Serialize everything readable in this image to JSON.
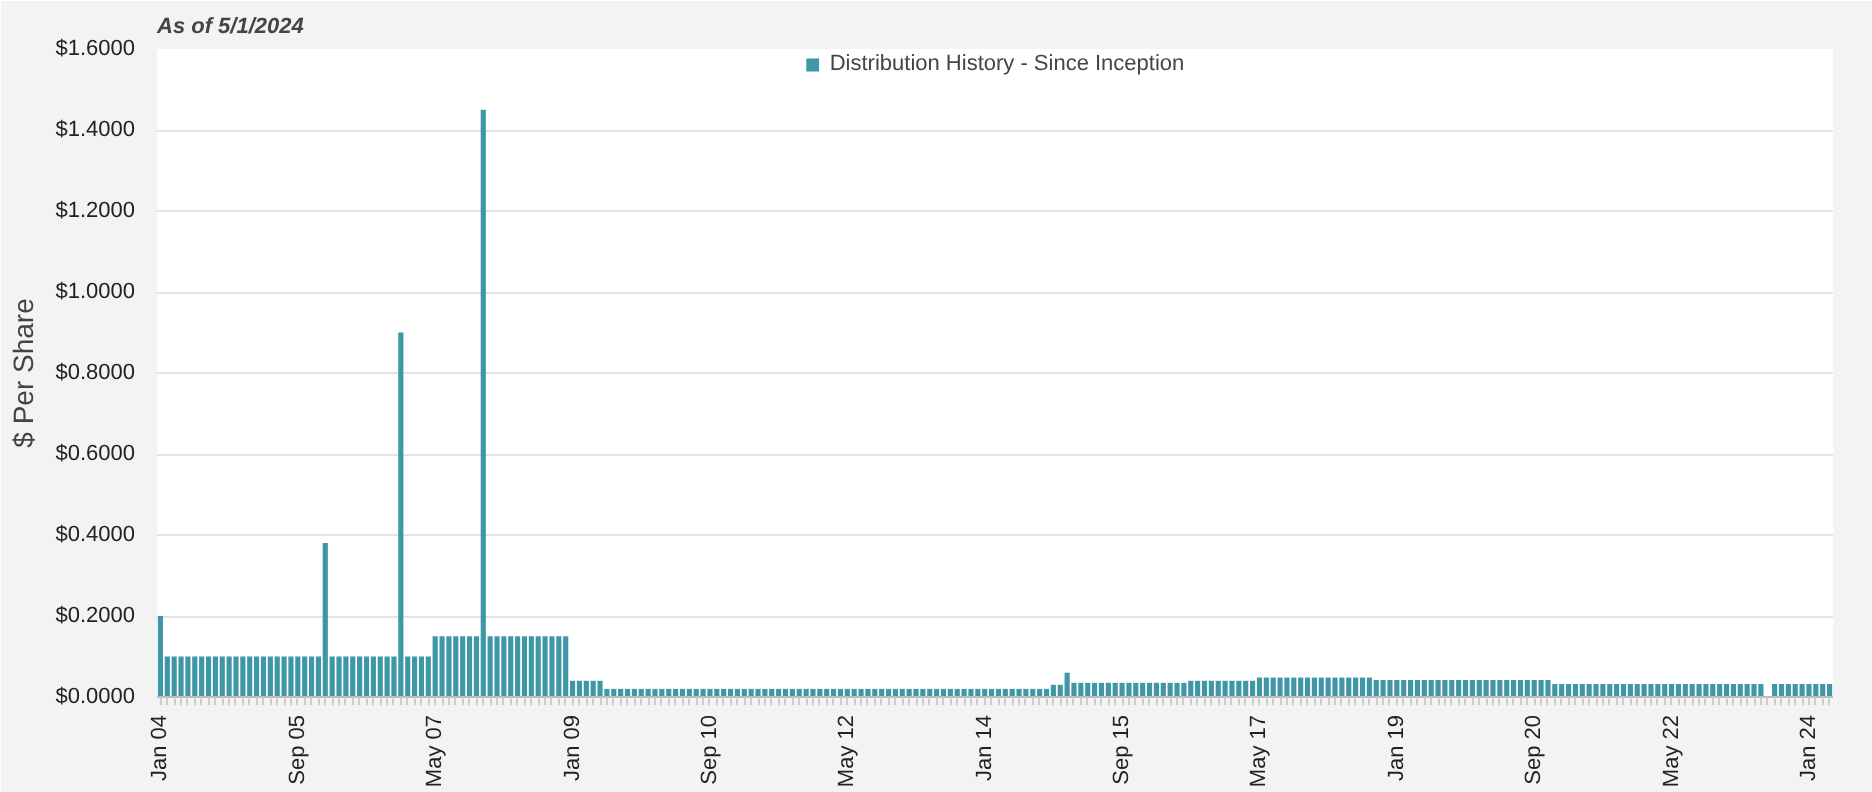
{
  "chart_data": {
    "type": "bar",
    "annotations": [
      "As of 5/1/2024"
    ],
    "ylabel": "$ Per Share",
    "categories": [
      "Jan 04",
      null,
      null,
      null,
      null,
      null,
      null,
      null,
      null,
      null,
      null,
      null,
      null,
      null,
      null,
      null,
      null,
      null,
      null,
      null,
      "Sep 05",
      null,
      null,
      null,
      null,
      null,
      null,
      null,
      null,
      null,
      null,
      null,
      null,
      null,
      null,
      null,
      null,
      null,
      null,
      null,
      "May 07",
      null,
      null,
      null,
      null,
      null,
      null,
      null,
      null,
      null,
      null,
      null,
      null,
      null,
      null,
      null,
      null,
      null,
      null,
      null,
      "Jan 09",
      null,
      null,
      null,
      null,
      null,
      null,
      null,
      null,
      null,
      null,
      null,
      null,
      null,
      null,
      null,
      null,
      null,
      null,
      null,
      "Sep 10",
      null,
      null,
      null,
      null,
      null,
      null,
      null,
      null,
      null,
      null,
      null,
      null,
      null,
      null,
      null,
      null,
      null,
      null,
      null,
      "May 12",
      null,
      null,
      null,
      null,
      null,
      null,
      null,
      null,
      null,
      null,
      null,
      null,
      null,
      null,
      null,
      null,
      null,
      null,
      null,
      "Jan 14",
      null,
      null,
      null,
      null,
      null,
      null,
      null,
      null,
      null,
      null,
      null,
      null,
      null,
      null,
      null,
      null,
      null,
      null,
      null,
      "Sep 15",
      null,
      null,
      null,
      null,
      null,
      null,
      null,
      null,
      null,
      null,
      null,
      null,
      null,
      null,
      null,
      null,
      null,
      null,
      null,
      "May 17",
      null,
      null,
      null,
      null,
      null,
      null,
      null,
      null,
      null,
      null,
      null,
      null,
      null,
      null,
      null,
      null,
      null,
      null,
      null,
      "Jan 19",
      null,
      null,
      null,
      null,
      null,
      null,
      null,
      null,
      null,
      null,
      null,
      null,
      null,
      null,
      null,
      null,
      null,
      null,
      null,
      "Sep 20",
      null,
      null,
      null,
      null,
      null,
      null,
      null,
      null,
      null,
      null,
      null,
      null,
      null,
      null,
      null,
      null,
      null,
      null,
      null,
      "May 22",
      null,
      null,
      null,
      null,
      null,
      null,
      null,
      null,
      null,
      null,
      null,
      null,
      null,
      null,
      null,
      null,
      null,
      null,
      null,
      "Jan 24",
      null,
      null,
      null
    ],
    "series": [
      {
        "name": "Distribution History - Since Inception",
        "color": "#3d97a5",
        "values": [
          0.2,
          0.1,
          0.1,
          0.1,
          0.1,
          0.1,
          0.1,
          0.1,
          0.1,
          0.1,
          0.1,
          0.1,
          0.1,
          0.1,
          0.1,
          0.1,
          0.1,
          0.1,
          0.1,
          0.1,
          0.1,
          0.1,
          0.1,
          0.1,
          0.38,
          0.1,
          0.1,
          0.1,
          0.1,
          0.1,
          0.1,
          0.1,
          0.1,
          0.1,
          0.1,
          0.9,
          0.1,
          0.1,
          0.1,
          0.1,
          0.15,
          0.15,
          0.15,
          0.15,
          0.15,
          0.15,
          0.15,
          1.45,
          0.15,
          0.15,
          0.15,
          0.15,
          0.15,
          0.15,
          0.15,
          0.15,
          0.15,
          0.15,
          0.15,
          0.15,
          0.04,
          0.04,
          0.04,
          0.04,
          0.04,
          0.02,
          0.02,
          0.02,
          0.02,
          0.02,
          0.02,
          0.02,
          0.02,
          0.02,
          0.02,
          0.02,
          0.02,
          0.02,
          0.02,
          0.02,
          0.02,
          0.02,
          0.02,
          0.02,
          0.02,
          0.02,
          0.02,
          0.02,
          0.02,
          0.02,
          0.02,
          0.02,
          0.02,
          0.02,
          0.02,
          0.02,
          0.02,
          0.02,
          0.02,
          0.02,
          0.02,
          0.02,
          0.02,
          0.02,
          0.02,
          0.02,
          0.02,
          0.02,
          0.02,
          0.02,
          0.02,
          0.02,
          0.02,
          0.02,
          0.02,
          0.02,
          0.02,
          0.02,
          0.02,
          0.02,
          0.02,
          0.02,
          0.02,
          0.02,
          0.02,
          0.02,
          0.02,
          0.02,
          0.02,
          0.02,
          0.03,
          0.03,
          0.06,
          0.035,
          0.035,
          0.035,
          0.035,
          0.035,
          0.035,
          0.035,
          0.035,
          0.035,
          0.035,
          0.035,
          0.035,
          0.035,
          0.035,
          0.035,
          0.035,
          0.035,
          0.04,
          0.04,
          0.04,
          0.04,
          0.04,
          0.04,
          0.04,
          0.04,
          0.04,
          0.04,
          0.048,
          0.048,
          0.048,
          0.048,
          0.048,
          0.048,
          0.048,
          0.048,
          0.048,
          0.048,
          0.048,
          0.048,
          0.048,
          0.048,
          0.048,
          0.048,
          0.048,
          0.042,
          0.042,
          0.042,
          0.042,
          0.042,
          0.042,
          0.042,
          0.042,
          0.042,
          0.042,
          0.042,
          0.042,
          0.042,
          0.042,
          0.042,
          0.042,
          0.042,
          0.042,
          0.042,
          0.042,
          0.042,
          0.042,
          0.042,
          0.042,
          0.042,
          0.042,
          0.032,
          0.032,
          0.032,
          0.032,
          0.032,
          0.032,
          0.032,
          0.032,
          0.032,
          0.032,
          0.032,
          0.032,
          0.032,
          0.032,
          0.032,
          0.032,
          0.032,
          0.032,
          0.032,
          0.032,
          0.032,
          0.032,
          0.032,
          0.032,
          0.032,
          0.032,
          0.032,
          0.032,
          0.032,
          0.032,
          0.032,
          null,
          0.032,
          0.032,
          0.032,
          0.032,
          0.032,
          0.032,
          0.032,
          0.032,
          0.032
        ]
      }
    ],
    "ylim": [
      0,
      1.6
    ],
    "yticks": [
      {
        "value": 0,
        "label": "$0.0000"
      },
      {
        "value": 0.2,
        "label": "$0.2000"
      },
      {
        "value": 0.4,
        "label": "$0.4000"
      },
      {
        "value": 0.6,
        "label": "$0.6000"
      },
      {
        "value": 0.8,
        "label": "$0.8000"
      },
      {
        "value": 1.0,
        "label": "$1.0000"
      },
      {
        "value": 1.2,
        "label": "$1.2000"
      },
      {
        "value": 1.4,
        "label": "$1.4000"
      },
      {
        "value": 1.6,
        "label": "$1.6000"
      }
    ],
    "grid": "y",
    "legend": "top"
  }
}
